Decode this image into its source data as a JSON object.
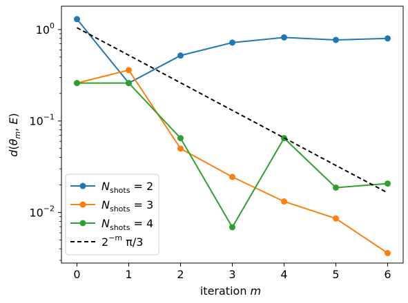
{
  "chart_data": {
    "type": "line",
    "xlabel": "iteration m",
    "ylabel": "d(θm, E)",
    "yscale": "log",
    "ylim": [
      0.0028,
      1.8
    ],
    "xlim": [
      -0.3,
      6.3
    ],
    "x": [
      0,
      1,
      2,
      3,
      4,
      5,
      6
    ],
    "xticks": [
      "0",
      "1",
      "2",
      "3",
      "4",
      "5",
      "6"
    ],
    "yticks": [
      {
        "value": 1,
        "base": "10",
        "exp": "0"
      },
      {
        "value": 0.1,
        "base": "10",
        "exp": "−1"
      },
      {
        "value": 0.01,
        "base": "10",
        "exp": "−2"
      }
    ],
    "grid": false,
    "legend_position": "lower-left",
    "series": [
      {
        "name": "N_shots = 2",
        "label_main": "N",
        "label_sub": "shots",
        "label_rest": " = 2",
        "color": "#1f77b4",
        "marker": "circle",
        "style": "solid",
        "values": [
          1.3,
          0.26,
          0.52,
          0.72,
          0.82,
          0.77,
          0.8
        ]
      },
      {
        "name": "N_shots = 3",
        "label_main": "N",
        "label_sub": "shots",
        "label_rest": " = 3",
        "color": "#ff7f0e",
        "marker": "circle",
        "style": "solid",
        "values": [
          0.26,
          0.36,
          0.05,
          0.0245,
          0.0132,
          0.0086,
          0.0036
        ]
      },
      {
        "name": "N_shots = 4",
        "label_main": "N",
        "label_sub": "shots",
        "label_rest": " = 4",
        "color": "#2ca02c",
        "marker": "circle",
        "style": "solid",
        "values": [
          0.26,
          0.26,
          0.065,
          0.0069,
          0.065,
          0.0187,
          0.0207
        ]
      },
      {
        "name": "2^−m π/3",
        "label_main": "2",
        "label_sup": "−m",
        "label_rest": " π/3",
        "color": "#000000",
        "marker": "none",
        "style": "dashed",
        "values": [
          1.047,
          0.524,
          0.262,
          0.131,
          0.0654,
          0.0327,
          0.0164
        ]
      }
    ]
  }
}
